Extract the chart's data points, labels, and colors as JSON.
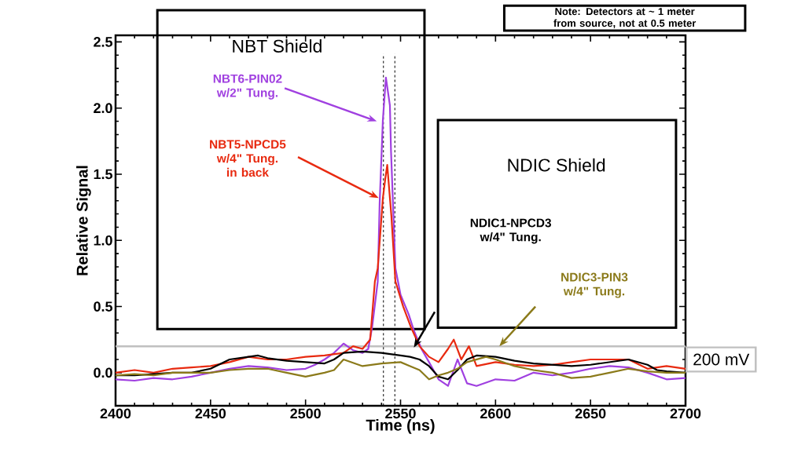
{
  "chart_data": {
    "type": "line",
    "xlabel": "Time (ns)",
    "ylabel": "Relative Signal",
    "xlim": [
      2400,
      2700
    ],
    "ylim": [
      -0.25,
      2.55
    ],
    "xticks": [
      2400,
      2450,
      2500,
      2550,
      2600,
      2650,
      2700
    ],
    "yticks": [
      {
        "value": 0,
        "label": "0.0"
      },
      {
        "value": 0.5,
        "label": "0.5"
      },
      {
        "value": 1,
        "label": "1.0"
      },
      {
        "value": 1.5,
        "label": "1.5"
      },
      {
        "value": 2,
        "label": "2.0"
      },
      {
        "value": 2.5,
        "label": "2.5"
      }
    ],
    "grid": false,
    "line_style": "solid",
    "annotations": [
      "NBT Shield",
      "NDIC Shield",
      "Note: Detectors at ~ 1 meter from source, not at 0.5 meter"
    ],
    "ref_lines": [
      {
        "axis": "y",
        "value": 0.2,
        "label": "200 mV",
        "color": "#c0c0c0",
        "line_style": "solid"
      },
      {
        "axis": "x",
        "value": 2541,
        "color": "#000000",
        "line_style": "dashed"
      },
      {
        "axis": "x",
        "value": 2547,
        "color": "#000000",
        "line_style": "dashed"
      }
    ],
    "series": [
      {
        "name": "NBT6-PIN02 w/2\" Tung.",
        "color": "#a040e0",
        "x": [
          2400,
          2410,
          2420,
          2430,
          2440,
          2450,
          2460,
          2470,
          2480,
          2490,
          2500,
          2505,
          2510,
          2515,
          2520,
          2525,
          2530,
          2533,
          2535,
          2538,
          2539,
          2540.7,
          2542.3,
          2544.4,
          2545,
          2547.3,
          2550,
          2554.3,
          2557,
          2561,
          2565,
          2570,
          2575,
          2580,
          2585,
          2590,
          2600,
          2610,
          2620,
          2630,
          2640,
          2650,
          2660,
          2670,
          2680,
          2690,
          2700
        ],
        "values": [
          -0.05,
          -0.06,
          -0.04,
          -0.05,
          -0.03,
          0.0,
          0.03,
          0.05,
          0.04,
          0.02,
          0.03,
          0.06,
          0.1,
          0.15,
          0.22,
          0.17,
          0.15,
          0.18,
          0.34,
          0.69,
          1.28,
          1.91,
          2.23,
          2.02,
          1.67,
          0.79,
          0.59,
          0.44,
          0.32,
          0.18,
          0.08,
          -0.05,
          -0.1,
          0.1,
          -0.08,
          -0.1,
          -0.05,
          -0.06,
          0.0,
          -0.02,
          0.0,
          0.03,
          0.05,
          0.04,
          0.0,
          -0.05,
          -0.04
        ]
      },
      {
        "name": "NBT5-NPCD5 w/4\" Tung. in back",
        "color": "#e82a10",
        "x": [
          2400,
          2410,
          2420,
          2430,
          2440,
          2450,
          2460,
          2470,
          2480,
          2490,
          2500,
          2510,
          2520,
          2525,
          2530,
          2534,
          2536.5,
          2538,
          2540.7,
          2542,
          2543,
          2545.2,
          2547.3,
          2551.4,
          2555.6,
          2560,
          2565,
          2570,
          2575,
          2578,
          2582,
          2586,
          2590,
          2600,
          2610,
          2620,
          2630,
          2640,
          2650,
          2660,
          2670,
          2680,
          2690,
          2700
        ],
        "values": [
          0.0,
          0.02,
          0.0,
          0.03,
          0.04,
          0.05,
          0.08,
          0.12,
          0.1,
          0.1,
          0.12,
          0.13,
          0.15,
          0.2,
          0.18,
          0.25,
          0.69,
          0.79,
          1.32,
          1.47,
          1.57,
          1.18,
          0.69,
          0.5,
          0.34,
          0.2,
          0.12,
          0.08,
          0.18,
          0.25,
          0.1,
          0.2,
          0.05,
          0.08,
          0.06,
          0.05,
          0.06,
          0.08,
          0.1,
          0.1,
          0.1,
          0.03,
          0.05,
          0.03
        ]
      },
      {
        "name": "NDIC1-NPCD3 w/4\" Tung.",
        "color": "#000000",
        "x": [
          2400,
          2410,
          2420,
          2430,
          2440,
          2450,
          2460,
          2470,
          2475,
          2480,
          2490,
          2500,
          2510,
          2515,
          2520,
          2530,
          2540,
          2550,
          2555,
          2560,
          2565,
          2570,
          2575,
          2580,
          2585,
          2590,
          2600,
          2610,
          2620,
          2630,
          2640,
          2650,
          2660,
          2670,
          2680,
          2685,
          2690,
          2700
        ],
        "values": [
          -0.02,
          -0.02,
          -0.01,
          0.0,
          0.0,
          0.03,
          0.1,
          0.12,
          0.13,
          0.11,
          0.09,
          0.08,
          0.07,
          0.1,
          0.15,
          0.16,
          0.15,
          0.13,
          0.12,
          0.1,
          0.05,
          -0.03,
          -0.05,
          0.02,
          0.1,
          0.13,
          0.12,
          0.09,
          0.07,
          0.06,
          0.05,
          0.06,
          0.08,
          0.1,
          0.06,
          0.02,
          0.01,
          0.0
        ]
      },
      {
        "name": "NDIC3-PIN3 w/4\" Tung.",
        "color": "#8b7a1a",
        "x": [
          2400,
          2410,
          2420,
          2430,
          2440,
          2450,
          2460,
          2470,
          2480,
          2490,
          2500,
          2510,
          2515,
          2520,
          2530,
          2540,
          2550,
          2555,
          2560,
          2565,
          2570,
          2575,
          2580,
          2585,
          2590,
          2595,
          2600,
          2610,
          2620,
          2630,
          2640,
          2650,
          2660,
          2670,
          2680,
          2690,
          2700
        ],
        "values": [
          -0.02,
          -0.01,
          -0.02,
          0.0,
          0.0,
          0.0,
          0.02,
          0.03,
          0.03,
          0.0,
          -0.03,
          0.0,
          0.02,
          0.1,
          0.05,
          0.07,
          0.08,
          0.05,
          0.02,
          -0.05,
          -0.02,
          0.0,
          0.03,
          0.08,
          0.1,
          0.12,
          0.1,
          0.05,
          0.02,
          0.0,
          -0.04,
          -0.03,
          0.0,
          0.03,
          0.01,
          0.0,
          0.0
        ]
      }
    ]
  }
}
